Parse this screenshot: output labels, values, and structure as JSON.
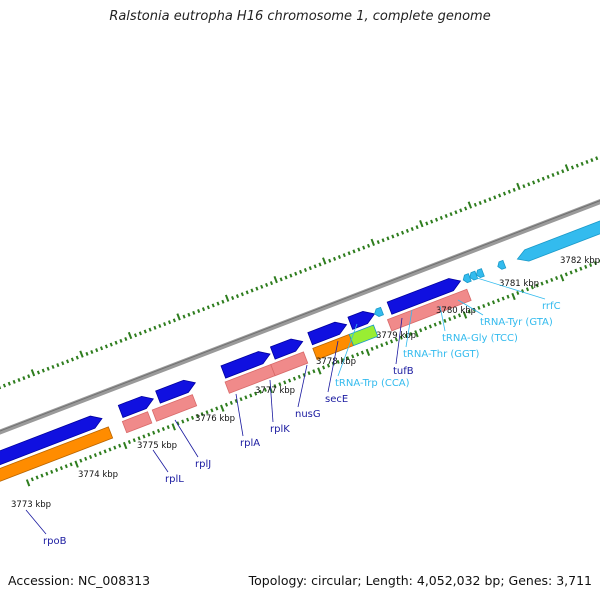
{
  "title": "Ralstonia eutropha H16 chromosome 1, complete genome",
  "footer": {
    "accession": "Accession: NC_008313",
    "topology": "Topology: circular; Length: 4,052,032 bp; Genes: 3,711"
  },
  "colors": {
    "backbone": "#8c8c8c",
    "tick": "#2e7d1e",
    "cds": "#1010e0",
    "gene": "#f08a8a",
    "rna": "#ff8c00",
    "misc": "#99ee33",
    "trna": "#33bbee",
    "label_protein": "#1a1aa0",
    "label_trna": "#33bbee"
  },
  "kbp_labels": [
    "3773 kbp",
    "3774 kbp",
    "3775 kbp",
    "3776 kbp",
    "3777 kbp",
    "3778 kbp",
    "3779 kbp",
    "3780 kbp",
    "3781 kbp",
    "3782 kbp"
  ],
  "gene_labels": [
    {
      "text": "rpoB",
      "type": "protein"
    },
    {
      "text": "rplL",
      "type": "protein"
    },
    {
      "text": "rplJ",
      "type": "protein"
    },
    {
      "text": "rplA",
      "type": "protein"
    },
    {
      "text": "rplK",
      "type": "protein"
    },
    {
      "text": "nusG",
      "type": "protein"
    },
    {
      "text": "secE",
      "type": "protein"
    },
    {
      "text": "tRNA-Trp (CCA)",
      "type": "trna"
    },
    {
      "text": "tufB",
      "type": "protein"
    },
    {
      "text": "tRNA-Thr (GGT)",
      "type": "trna"
    },
    {
      "text": "tRNA-Gly (TCC)",
      "type": "trna"
    },
    {
      "text": "tRNA-Tyr (GTA)",
      "type": "trna"
    },
    {
      "text": "rrfC",
      "type": "trna"
    }
  ]
}
